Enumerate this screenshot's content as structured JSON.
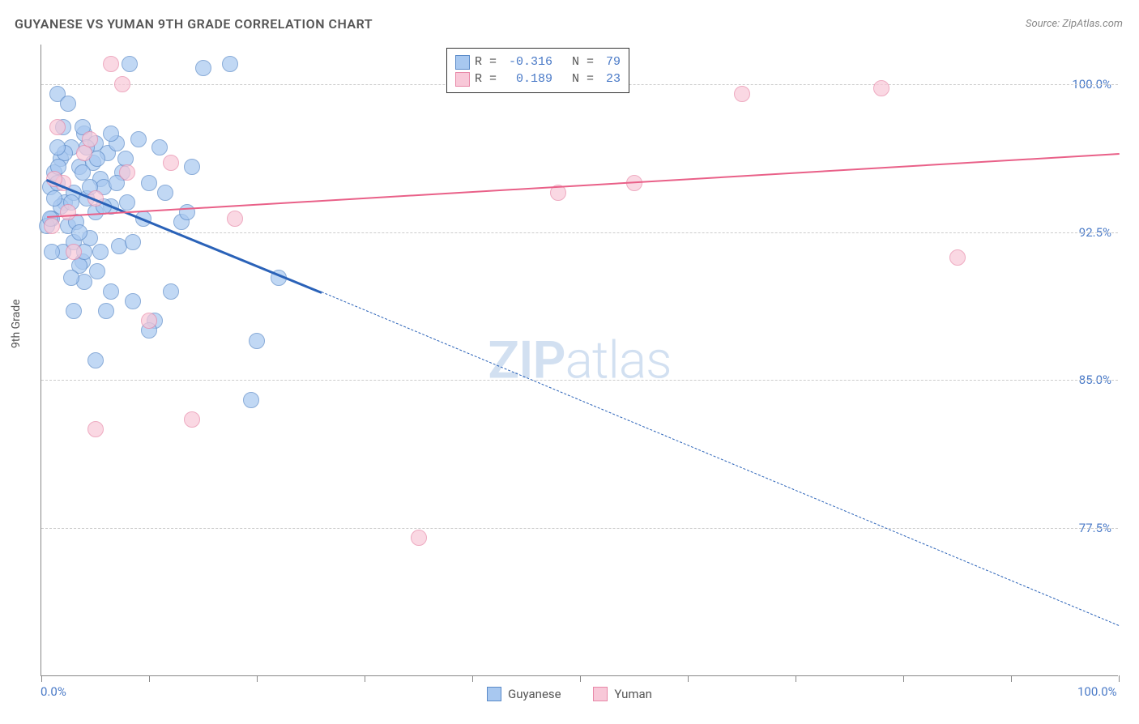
{
  "title": "GUYANESE VS YUMAN 9TH GRADE CORRELATION CHART",
  "source": "Source: ZipAtlas.com",
  "y_label": "9th Grade",
  "watermark_bold": "ZIP",
  "watermark_light": "atlas",
  "chart": {
    "type": "scatter",
    "xlim": [
      0,
      100
    ],
    "ylim": [
      70,
      102
    ],
    "x_ticks": [
      0,
      10,
      20,
      30,
      40,
      50,
      60,
      70,
      80,
      90,
      100
    ],
    "x_tick_labels": {
      "0": "0.0%",
      "100": "100.0%"
    },
    "y_gridlines": [
      77.5,
      85.0,
      92.5,
      100.0
    ],
    "y_tick_labels": [
      "77.5%",
      "85.0%",
      "92.5%",
      "100.0%"
    ],
    "point_radius": 10,
    "point_fill_opacity": 0.35,
    "point_stroke_width": 1.5,
    "background_color": "#ffffff",
    "grid_color": "#cccccc",
    "axis_color": "#888888",
    "label_color": "#4a7ac7",
    "series": [
      {
        "name": "Guyanese",
        "color_fill": "#a8c8f0",
        "color_stroke": "#5a8ac8",
        "trend": {
          "x1": 0.5,
          "y1": 95.2,
          "x2": 26,
          "y2": 89.5,
          "dash_x2": 100,
          "dash_y2": 72.6,
          "color": "#2a62b8",
          "width": 3
        },
        "stats": {
          "R": "-0.316",
          "N": "79"
        },
        "points": [
          [
            0.8,
            94.8
          ],
          [
            1.2,
            95.5
          ],
          [
            1.0,
            93.2
          ],
          [
            1.5,
            95.0
          ],
          [
            1.8,
            96.2
          ],
          [
            2.0,
            91.5
          ],
          [
            2.2,
            94.0
          ],
          [
            2.5,
            92.8
          ],
          [
            2.8,
            96.8
          ],
          [
            3.0,
            94.5
          ],
          [
            3.2,
            93.0
          ],
          [
            3.5,
            95.8
          ],
          [
            3.8,
            91.0
          ],
          [
            4.0,
            97.5
          ],
          [
            4.2,
            94.2
          ],
          [
            4.5,
            92.2
          ],
          [
            4.8,
            96.0
          ],
          [
            5.0,
            93.5
          ],
          [
            5.2,
            90.5
          ],
          [
            5.5,
            95.2
          ],
          [
            5.8,
            94.8
          ],
          [
            6.0,
            88.5
          ],
          [
            6.2,
            96.5
          ],
          [
            6.5,
            93.8
          ],
          [
            7.0,
            97.0
          ],
          [
            7.2,
            91.8
          ],
          [
            7.5,
            95.5
          ],
          [
            8.0,
            94.0
          ],
          [
            8.2,
            101.0
          ],
          [
            8.5,
            89.0
          ],
          [
            9.0,
            97.2
          ],
          [
            9.5,
            93.2
          ],
          [
            10.0,
            95.0
          ],
          [
            10.5,
            88.0
          ],
          [
            11.0,
            96.8
          ],
          [
            11.5,
            94.5
          ],
          [
            12.0,
            89.5
          ],
          [
            13.0,
            93.0
          ],
          [
            14.0,
            95.8
          ],
          [
            15.0,
            100.8
          ],
          [
            2.0,
            97.8
          ],
          [
            3.0,
            92.0
          ],
          [
            4.0,
            90.0
          ],
          [
            5.0,
            97.0
          ],
          [
            1.5,
            99.5
          ],
          [
            6.5,
            89.5
          ],
          [
            7.8,
            96.2
          ],
          [
            1.0,
            91.5
          ],
          [
            2.5,
            99.0
          ],
          [
            3.8,
            95.5
          ],
          [
            0.5,
            92.8
          ],
          [
            1.8,
            93.8
          ],
          [
            2.2,
            96.5
          ],
          [
            3.5,
            90.8
          ],
          [
            4.5,
            94.8
          ],
          [
            5.5,
            91.5
          ],
          [
            6.5,
            97.5
          ],
          [
            1.2,
            94.2
          ],
          [
            17.5,
            101.0
          ],
          [
            2.8,
            90.2
          ],
          [
            20.0,
            87.0
          ],
          [
            3.8,
            97.8
          ],
          [
            22.0,
            90.2
          ],
          [
            5.2,
            96.2
          ],
          [
            3.0,
            88.5
          ],
          [
            1.6,
            95.8
          ],
          [
            0.8,
            93.2
          ],
          [
            4.2,
            96.8
          ],
          [
            2.8,
            94.0
          ],
          [
            3.5,
            92.5
          ],
          [
            5.8,
            93.8
          ],
          [
            7.0,
            95.0
          ],
          [
            8.5,
            92.0
          ],
          [
            10.0,
            87.5
          ],
          [
            5.0,
            86.0
          ],
          [
            13.5,
            93.5
          ],
          [
            4.0,
            91.5
          ],
          [
            1.5,
            96.8
          ],
          [
            19.5,
            84.0
          ]
        ]
      },
      {
        "name": "Yuman",
        "color_fill": "#f8c8d8",
        "color_stroke": "#e888a8",
        "trend": {
          "x1": 0.5,
          "y1": 93.3,
          "x2": 100,
          "y2": 96.5,
          "color": "#e96088",
          "width": 2.5
        },
        "stats": {
          "R": "0.189",
          "N": "23"
        },
        "points": [
          [
            1.0,
            92.8
          ],
          [
            1.5,
            97.8
          ],
          [
            2.0,
            95.0
          ],
          [
            3.0,
            91.5
          ],
          [
            4.0,
            96.5
          ],
          [
            5.0,
            94.2
          ],
          [
            6.5,
            101.0
          ],
          [
            7.5,
            100.0
          ],
          [
            10.0,
            88.0
          ],
          [
            12.0,
            96.0
          ],
          [
            18.0,
            93.2
          ],
          [
            14.0,
            83.0
          ],
          [
            5.0,
            82.5
          ],
          [
            1.2,
            95.2
          ],
          [
            2.5,
            93.5
          ],
          [
            4.5,
            97.2
          ],
          [
            8.0,
            95.5
          ],
          [
            48.0,
            94.5
          ],
          [
            55.0,
            95.0
          ],
          [
            65.0,
            99.5
          ],
          [
            78.0,
            99.8
          ],
          [
            85.0,
            91.2
          ],
          [
            35.0,
            77.0
          ]
        ]
      }
    ]
  },
  "legend_bottom": [
    {
      "label": "Guyanese",
      "fill": "#a8c8f0",
      "stroke": "#5a8ac8"
    },
    {
      "label": "Yuman",
      "fill": "#f8c8d8",
      "stroke": "#e888a8"
    }
  ]
}
